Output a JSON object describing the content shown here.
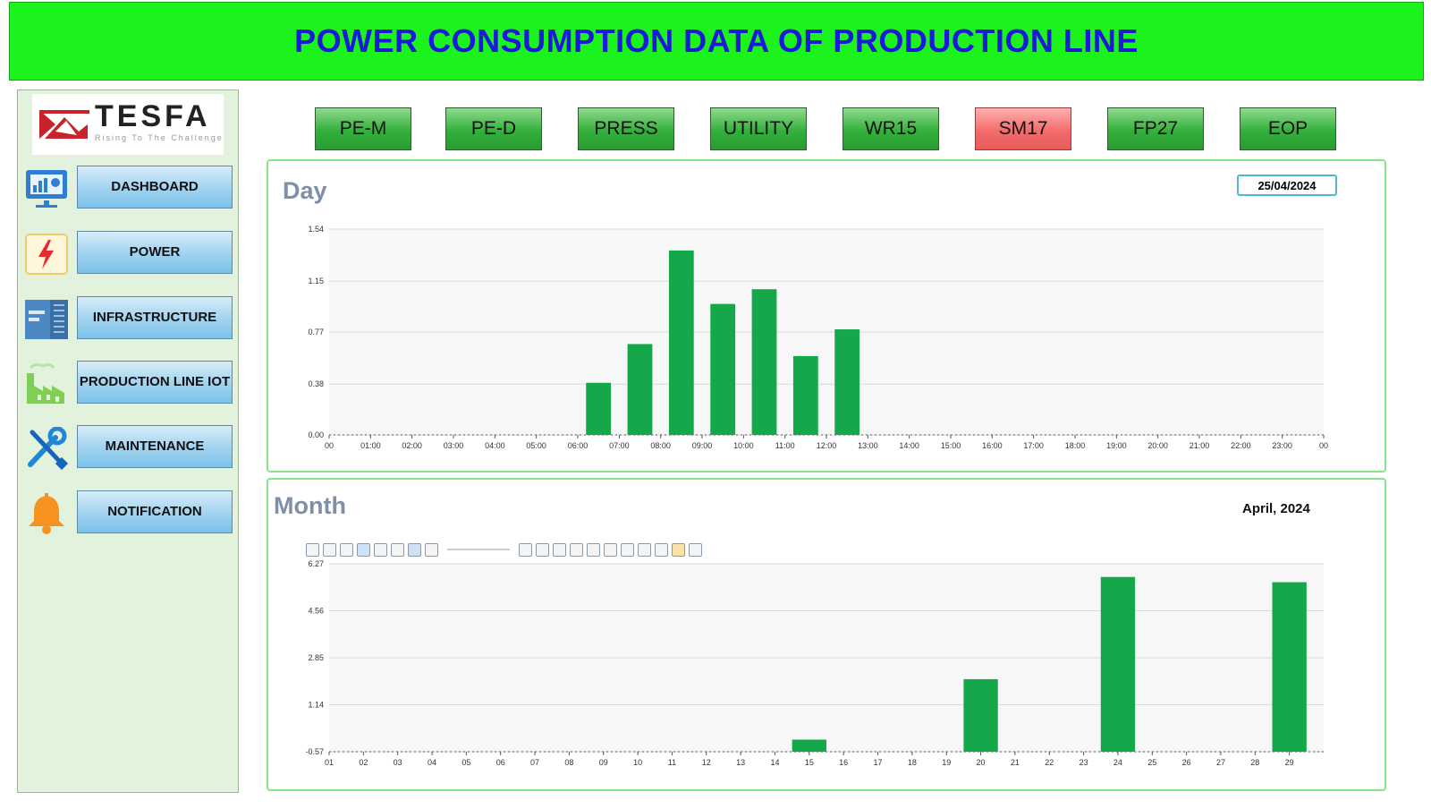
{
  "header": {
    "title": "POWER CONSUMPTION DATA OF PRODUCTION LINE"
  },
  "logo": {
    "name": "TESFA",
    "tagline": "Rising To The Challenge"
  },
  "sidebar": {
    "items": [
      {
        "label": "DASHBOARD",
        "icon": "dashboard-monitor-icon"
      },
      {
        "label": "POWER",
        "icon": "lightning-bolt-icon"
      },
      {
        "label": "INFRASTRUCTURE",
        "icon": "server-rack-icon"
      },
      {
        "label": "PRODUCTION LINE IOT",
        "icon": "factory-icon"
      },
      {
        "label": "MAINTENANCE",
        "icon": "wrench-screwdriver-icon"
      },
      {
        "label": "NOTIFICATION",
        "icon": "bell-icon"
      }
    ]
  },
  "tabs": [
    {
      "label": "PE-M",
      "active": false
    },
    {
      "label": "PE-D",
      "active": false
    },
    {
      "label": "PRESS",
      "active": false
    },
    {
      "label": "UTILITY",
      "active": false
    },
    {
      "label": "WR15",
      "active": false
    },
    {
      "label": "SM17",
      "active": true
    },
    {
      "label": "FP27",
      "active": false
    },
    {
      "label": "EOP",
      "active": false
    }
  ],
  "colors": {
    "bar": "#14a84a",
    "active_tab": "#f36c6c",
    "tab": "#32b13a",
    "banner": "#1cf21c",
    "title": "#1a1ad8"
  },
  "day_panel": {
    "title": "Day",
    "date": "25/04/2024"
  },
  "month_panel": {
    "title": "Month",
    "period": "April, 2024"
  },
  "chart_data": [
    {
      "type": "bar",
      "title": "Day",
      "categories": [
        "00",
        "01:00",
        "02:00",
        "03:00",
        "04:00",
        "05:00",
        "06:00",
        "07:00",
        "08:00",
        "09:00",
        "10:00",
        "11:00",
        "12:00",
        "13:00",
        "14:00",
        "15:00",
        "16:00",
        "17:00",
        "18:00",
        "19:00",
        "20:00",
        "21:00",
        "22:00",
        "23:00",
        "00"
      ],
      "bars": [
        {
          "x": 6.5,
          "value": 0.39
        },
        {
          "x": 7.5,
          "value": 0.68
        },
        {
          "x": 8.5,
          "value": 1.38
        },
        {
          "x": 9.5,
          "value": 0.98
        },
        {
          "x": 10.5,
          "value": 1.09
        },
        {
          "x": 11.5,
          "value": 0.59
        },
        {
          "x": 12.5,
          "value": 0.79
        }
      ],
      "yticks": [
        "0.00",
        "0.38",
        "0.77",
        "1.15",
        "1.54"
      ],
      "ylim": [
        0,
        1.54
      ],
      "grid": true
    },
    {
      "type": "bar",
      "title": "Month",
      "categories": [
        "01",
        "02",
        "03",
        "04",
        "05",
        "06",
        "07",
        "08",
        "09",
        "10",
        "11",
        "12",
        "13",
        "14",
        "15",
        "16",
        "17",
        "18",
        "19",
        "20",
        "21",
        "22",
        "23",
        "24",
        "25",
        "26",
        "27",
        "28",
        "29"
      ],
      "bars": [
        {
          "x": 15,
          "value": -0.13
        },
        {
          "x": 20,
          "value": 2.07
        },
        {
          "x": 24,
          "value": 5.79
        },
        {
          "x": 29,
          "value": 5.6
        }
      ],
      "yticks": [
        "-0.57",
        "1.14",
        "2.85",
        "4.56",
        "6.27"
      ],
      "ylim": [
        -0.57,
        6.27
      ],
      "grid": true
    }
  ]
}
